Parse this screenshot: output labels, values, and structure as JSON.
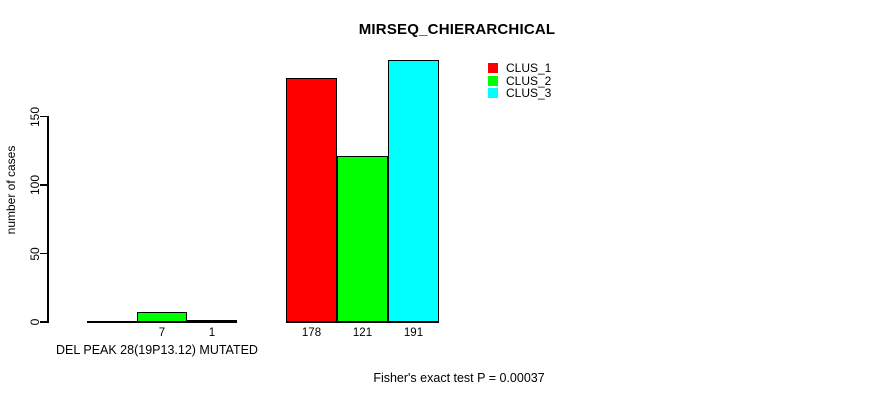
{
  "chart_data": {
    "type": "bar",
    "title": "MIRSEQ_CHIERARCHICAL",
    "ylabel": "number of cases",
    "xlabel": "DEL PEAK 28(19P13.12) MUTATED",
    "annotation": "Fisher's exact test P = 0.00037",
    "ylim": [
      0,
      150
    ],
    "yticks": [
      0,
      50,
      100,
      150
    ],
    "grid": false,
    "legend_position": "top-right",
    "bar_outline_color": "#000000",
    "value_label_rule": "value printed under each bar; zero values have no bar and no label",
    "groups": 2,
    "series": [
      {
        "name": "CLUS_1",
        "color": "#ff0000",
        "values": [
          0,
          178
        ]
      },
      {
        "name": "CLUS_2",
        "color": "#00ff00",
        "values": [
          7,
          121
        ]
      },
      {
        "name": "CLUS_3",
        "color": "#00ffff",
        "values": [
          1,
          191
        ]
      }
    ]
  }
}
